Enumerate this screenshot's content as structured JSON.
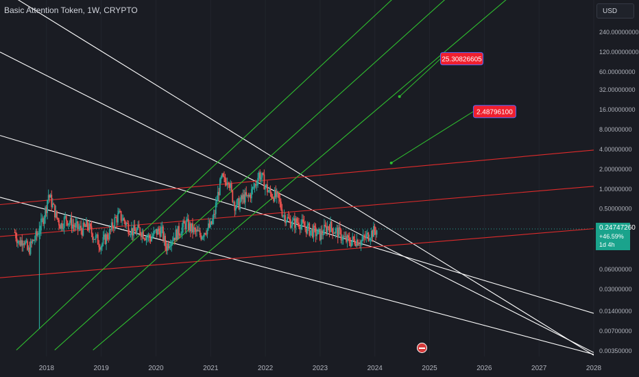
{
  "header": {
    "title": "Basic Attention Token, 1W, CRYPTO",
    "currency": "USD"
  },
  "price_label": {
    "price": "0.24747260",
    "change": "+46.59%",
    "countdown": "1d 4h"
  },
  "annotations": [
    {
      "text": "25.30826605",
      "year": 2024.45,
      "price": 25.30826605,
      "label_year": 2025.2,
      "label_price": 95
    },
    {
      "text": "2.48796100",
      "year": 2024.3,
      "price": 2.487961,
      "label_year": 2025.8,
      "label_price": 15
    }
  ],
  "colors": {
    "background": "#1a1c23",
    "up": "#26a69a",
    "down": "#ef5350",
    "channel_white": "#ffffff",
    "channel_red": "#e02b2b",
    "channel_green": "#2fbf2f",
    "label_bg": "#f01f2e",
    "price_label_bg": "#1aa38c"
  },
  "chart_data": {
    "type": "candlestick",
    "scale": "log",
    "x_range": [
      2017.15,
      2028.0
    ],
    "y_range": [
      0.00288,
      360
    ],
    "x_ticks": [
      {
        "label": "2018",
        "value": 2018
      },
      {
        "label": "2019",
        "value": 2019
      },
      {
        "label": "2020",
        "value": 2020
      },
      {
        "label": "2021",
        "value": 2021
      },
      {
        "label": "2022",
        "value": 2022
      },
      {
        "label": "2023",
        "value": 2023
      },
      {
        "label": "2024",
        "value": 2024
      },
      {
        "label": "2025",
        "value": 2025
      },
      {
        "label": "2026",
        "value": 2026
      },
      {
        "label": "2027",
        "value": 2027
      },
      {
        "label": "2028",
        "value": 2028
      }
    ],
    "y_ticks": [
      {
        "label": "240.00000000",
        "value": 240
      },
      {
        "label": "120.00000000",
        "value": 120
      },
      {
        "label": "60.00000000",
        "value": 60
      },
      {
        "label": "32.00000000",
        "value": 32
      },
      {
        "label": "16.00000000",
        "value": 16
      },
      {
        "label": "8.00000000",
        "value": 8
      },
      {
        "label": "4.00000000",
        "value": 4
      },
      {
        "label": "2.00000000",
        "value": 2
      },
      {
        "label": "1.00000000",
        "value": 1
      },
      {
        "label": "0.50000000",
        "value": 0.5
      },
      {
        "label": "0.06000000",
        "value": 0.06
      },
      {
        "label": "0.03000000",
        "value": 0.03
      },
      {
        "label": "0.01400000",
        "value": 0.014
      },
      {
        "label": "0.00700000",
        "value": 0.007
      },
      {
        "label": "0.00350000",
        "value": 0.0035
      }
    ],
    "current_price": 0.2475,
    "price_path": [
      [
        2017.42,
        0.22
      ],
      [
        2017.5,
        0.15
      ],
      [
        2017.58,
        0.18
      ],
      [
        2017.66,
        0.11
      ],
      [
        2017.75,
        0.16
      ],
      [
        2017.83,
        0.2
      ],
      [
        2017.91,
        0.3
      ],
      [
        2018.0,
        0.55
      ],
      [
        2018.03,
        0.85
      ],
      [
        2018.1,
        0.6
      ],
      [
        2018.18,
        0.38
      ],
      [
        2018.26,
        0.28
      ],
      [
        2018.35,
        0.36
      ],
      [
        2018.45,
        0.3
      ],
      [
        2018.55,
        0.26
      ],
      [
        2018.65,
        0.24
      ],
      [
        2018.75,
        0.28
      ],
      [
        2018.85,
        0.2
      ],
      [
        2018.92,
        0.17
      ],
      [
        2019.0,
        0.14
      ],
      [
        2019.08,
        0.18
      ],
      [
        2019.16,
        0.22
      ],
      [
        2019.25,
        0.34
      ],
      [
        2019.33,
        0.4
      ],
      [
        2019.42,
        0.33
      ],
      [
        2019.5,
        0.26
      ],
      [
        2019.6,
        0.22
      ],
      [
        2019.7,
        0.24
      ],
      [
        2019.8,
        0.2
      ],
      [
        2019.9,
        0.18
      ],
      [
        2020.0,
        0.22
      ],
      [
        2020.1,
        0.24
      ],
      [
        2020.18,
        0.13
      ],
      [
        2020.26,
        0.17
      ],
      [
        2020.35,
        0.2
      ],
      [
        2020.45,
        0.24
      ],
      [
        2020.55,
        0.3
      ],
      [
        2020.62,
        0.26
      ],
      [
        2020.72,
        0.22
      ],
      [
        2020.82,
        0.2
      ],
      [
        2020.9,
        0.24
      ],
      [
        2021.0,
        0.27
      ],
      [
        2021.06,
        0.38
      ],
      [
        2021.12,
        0.75
      ],
      [
        2021.2,
        1.45
      ],
      [
        2021.26,
        1.25
      ],
      [
        2021.32,
        1.55
      ],
      [
        2021.38,
        0.85
      ],
      [
        2021.45,
        0.55
      ],
      [
        2021.52,
        0.6
      ],
      [
        2021.6,
        0.75
      ],
      [
        2021.68,
        0.72
      ],
      [
        2021.76,
        0.95
      ],
      [
        2021.84,
        1.35
      ],
      [
        2021.88,
        1.7
      ],
      [
        2021.95,
        1.4
      ],
      [
        2022.0,
        1.1
      ],
      [
        2022.08,
        0.85
      ],
      [
        2022.16,
        0.8
      ],
      [
        2022.24,
        0.7
      ],
      [
        2022.32,
        0.42
      ],
      [
        2022.4,
        0.35
      ],
      [
        2022.5,
        0.3
      ],
      [
        2022.6,
        0.32
      ],
      [
        2022.7,
        0.27
      ],
      [
        2022.8,
        0.24
      ],
      [
        2022.9,
        0.22
      ],
      [
        2023.0,
        0.2
      ],
      [
        2023.08,
        0.24
      ],
      [
        2023.16,
        0.28
      ],
      [
        2023.25,
        0.24
      ],
      [
        2023.35,
        0.21
      ],
      [
        2023.45,
        0.17
      ],
      [
        2023.55,
        0.16
      ],
      [
        2023.65,
        0.17
      ],
      [
        2023.75,
        0.16
      ],
      [
        2023.85,
        0.19
      ],
      [
        2023.95,
        0.22
      ],
      [
        2024.05,
        0.24
      ]
    ],
    "special_wicks": [
      {
        "year": 2017.87,
        "high": 0.32,
        "low": 0.0075
      }
    ],
    "lines": {
      "white": [
        [
          [
            2017.15,
            1100
          ],
          [
            2028.0,
            0.003
          ]
        ],
        [
          [
            2017.15,
            120
          ],
          [
            2028.0,
            0.0033
          ]
        ],
        [
          [
            2017.15,
            6.5
          ],
          [
            2028.0,
            0.013
          ]
        ],
        [
          [
            2017.15,
            0.75
          ],
          [
            2028.0,
            0.0031
          ]
        ]
      ],
      "red": [
        [
          [
            2017.15,
            0.58
          ],
          [
            2028.0,
            3.9
          ]
        ],
        [
          [
            2017.15,
            0.19
          ],
          [
            2028.0,
            1.1
          ]
        ],
        [
          [
            2017.15,
            0.045
          ],
          [
            2028.0,
            0.25
          ]
        ]
      ],
      "green": [
        [
          [
            2017.45,
            0.0036
          ],
          [
            2028.0,
            540000
          ]
        ],
        [
          [
            2018.15,
            0.0036
          ],
          [
            2028.0,
            80000
          ]
        ],
        [
          [
            2018.85,
            0.0036
          ],
          [
            2028.0,
            10000
          ]
        ]
      ]
    }
  }
}
